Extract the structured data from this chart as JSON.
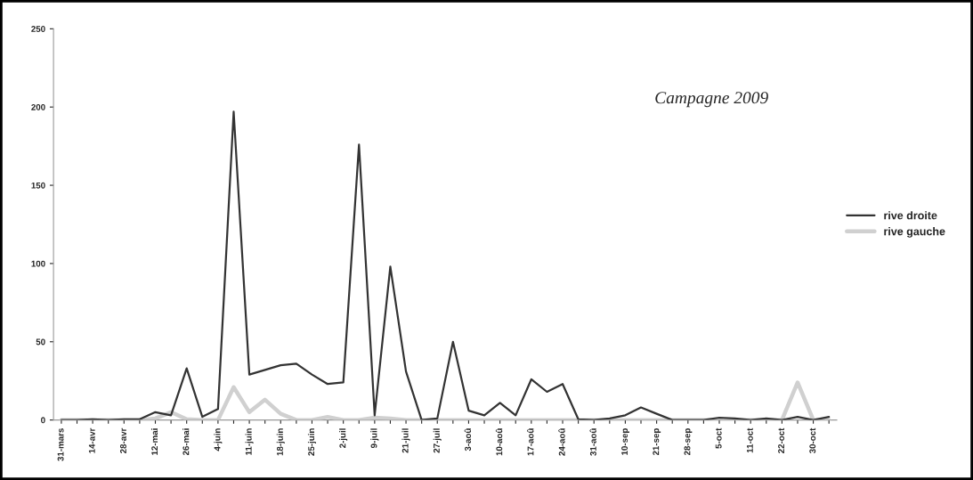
{
  "chart_data": {
    "type": "line",
    "categories": [
      "31-mars",
      null,
      "14-avr",
      null,
      "28-avr",
      null,
      "12-mai",
      null,
      "26-mai",
      null,
      "4-juin",
      null,
      "11-juin",
      null,
      "18-juin",
      null,
      "25-juin",
      null,
      "2-juil",
      null,
      "9-juil",
      null,
      "21-juil",
      null,
      "27-juil",
      null,
      "3-aoû",
      null,
      "10-aoû",
      null,
      "17-aoû",
      null,
      "24-aoû",
      null,
      "31-aoû",
      null,
      "10-sep",
      null,
      "21-sep",
      null,
      "28-sep",
      null,
      "5-oct",
      null,
      "11-oct",
      null,
      "22-oct",
      null,
      "30-oct",
      null
    ],
    "series": [
      {
        "name": "rive droite",
        "color": "#333333",
        "values": [
          0,
          0,
          0.5,
          0,
          0.5,
          0.5,
          5,
          3,
          33,
          2,
          7,
          197,
          29,
          32,
          35,
          36,
          29,
          23,
          24,
          176,
          3,
          98,
          31,
          0,
          1,
          50,
          6,
          3,
          11,
          3,
          26,
          18,
          23,
          0.5,
          0,
          1,
          3,
          8,
          4,
          0,
          0,
          0,
          1.5,
          1,
          0,
          1,
          0,
          2,
          0,
          2
        ]
      },
      {
        "name": "rive gauche",
        "color": "#d0d0d0",
        "values": [
          0,
          0,
          0,
          0,
          0,
          0,
          1,
          5,
          0.5,
          0,
          0,
          21,
          5,
          13,
          4,
          0,
          0,
          2,
          0,
          0,
          1.5,
          1,
          0,
          0,
          0,
          0,
          0,
          0,
          0,
          0,
          0,
          0,
          0,
          0,
          0,
          0,
          0,
          0,
          0,
          0,
          0,
          0,
          0,
          0,
          0,
          0,
          0,
          24,
          0,
          0
        ]
      }
    ],
    "ylim": [
      0,
      250
    ],
    "yticks": [
      0,
      50,
      100,
      150,
      200,
      250
    ],
    "grid": false,
    "legend": "right",
    "marker": "none",
    "line_style": "solid",
    "annotations": [
      "Campagne 2009"
    ]
  }
}
